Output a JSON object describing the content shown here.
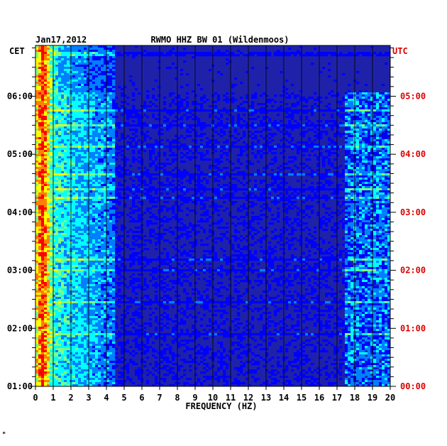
{
  "chart_data": {
    "type": "heatmap",
    "title_date": "Jan17,2012",
    "title": "RWMO HHZ BW 01 (Wildenmoos)",
    "left_timezone": "CET",
    "right_timezone": "UTC",
    "xlabel": "FREQUENCY (HZ)",
    "x_ticks": [
      0,
      1,
      2,
      3,
      4,
      5,
      6,
      7,
      8,
      9,
      10,
      11,
      12,
      13,
      14,
      15,
      16,
      17,
      18,
      19,
      20
    ],
    "x_tick_labels": [
      "0",
      "1",
      "2",
      "3",
      "4",
      "5",
      "6",
      "7",
      "8",
      "9",
      "10",
      "11",
      "12",
      "13",
      "14",
      "15",
      "16",
      "17",
      "18",
      "19",
      "20"
    ],
    "xlim": [
      0,
      20
    ],
    "left_time_labels": [
      "06:00",
      "05:00",
      "04:00",
      "03:00",
      "02:00",
      "01:00"
    ],
    "right_time_labels": [
      "05:00",
      "04:00",
      "03:00",
      "02:00",
      "01:00",
      "00:00"
    ],
    "time_label_hours_cet": [
      6,
      5,
      4,
      3,
      2,
      1
    ],
    "ylim_hours_cet": [
      1,
      6.875
    ],
    "y_direction": "top is latest",
    "right_label_color": "#dd0000",
    "colormap": [
      "#00007f",
      "#0000ff",
      "#007fff",
      "#00ffff",
      "#7fff7f",
      "#ffff00",
      "#ff7f00",
      "#ff0000"
    ],
    "background_level_color": "#1f22a8",
    "dominant_energy_band_hz": [
      0,
      1
    ],
    "peak_frequency_hz": 0.4,
    "secondary_band_hz": [
      17.5,
      20
    ],
    "grid": true,
    "corner_mark": "ᵐ"
  }
}
